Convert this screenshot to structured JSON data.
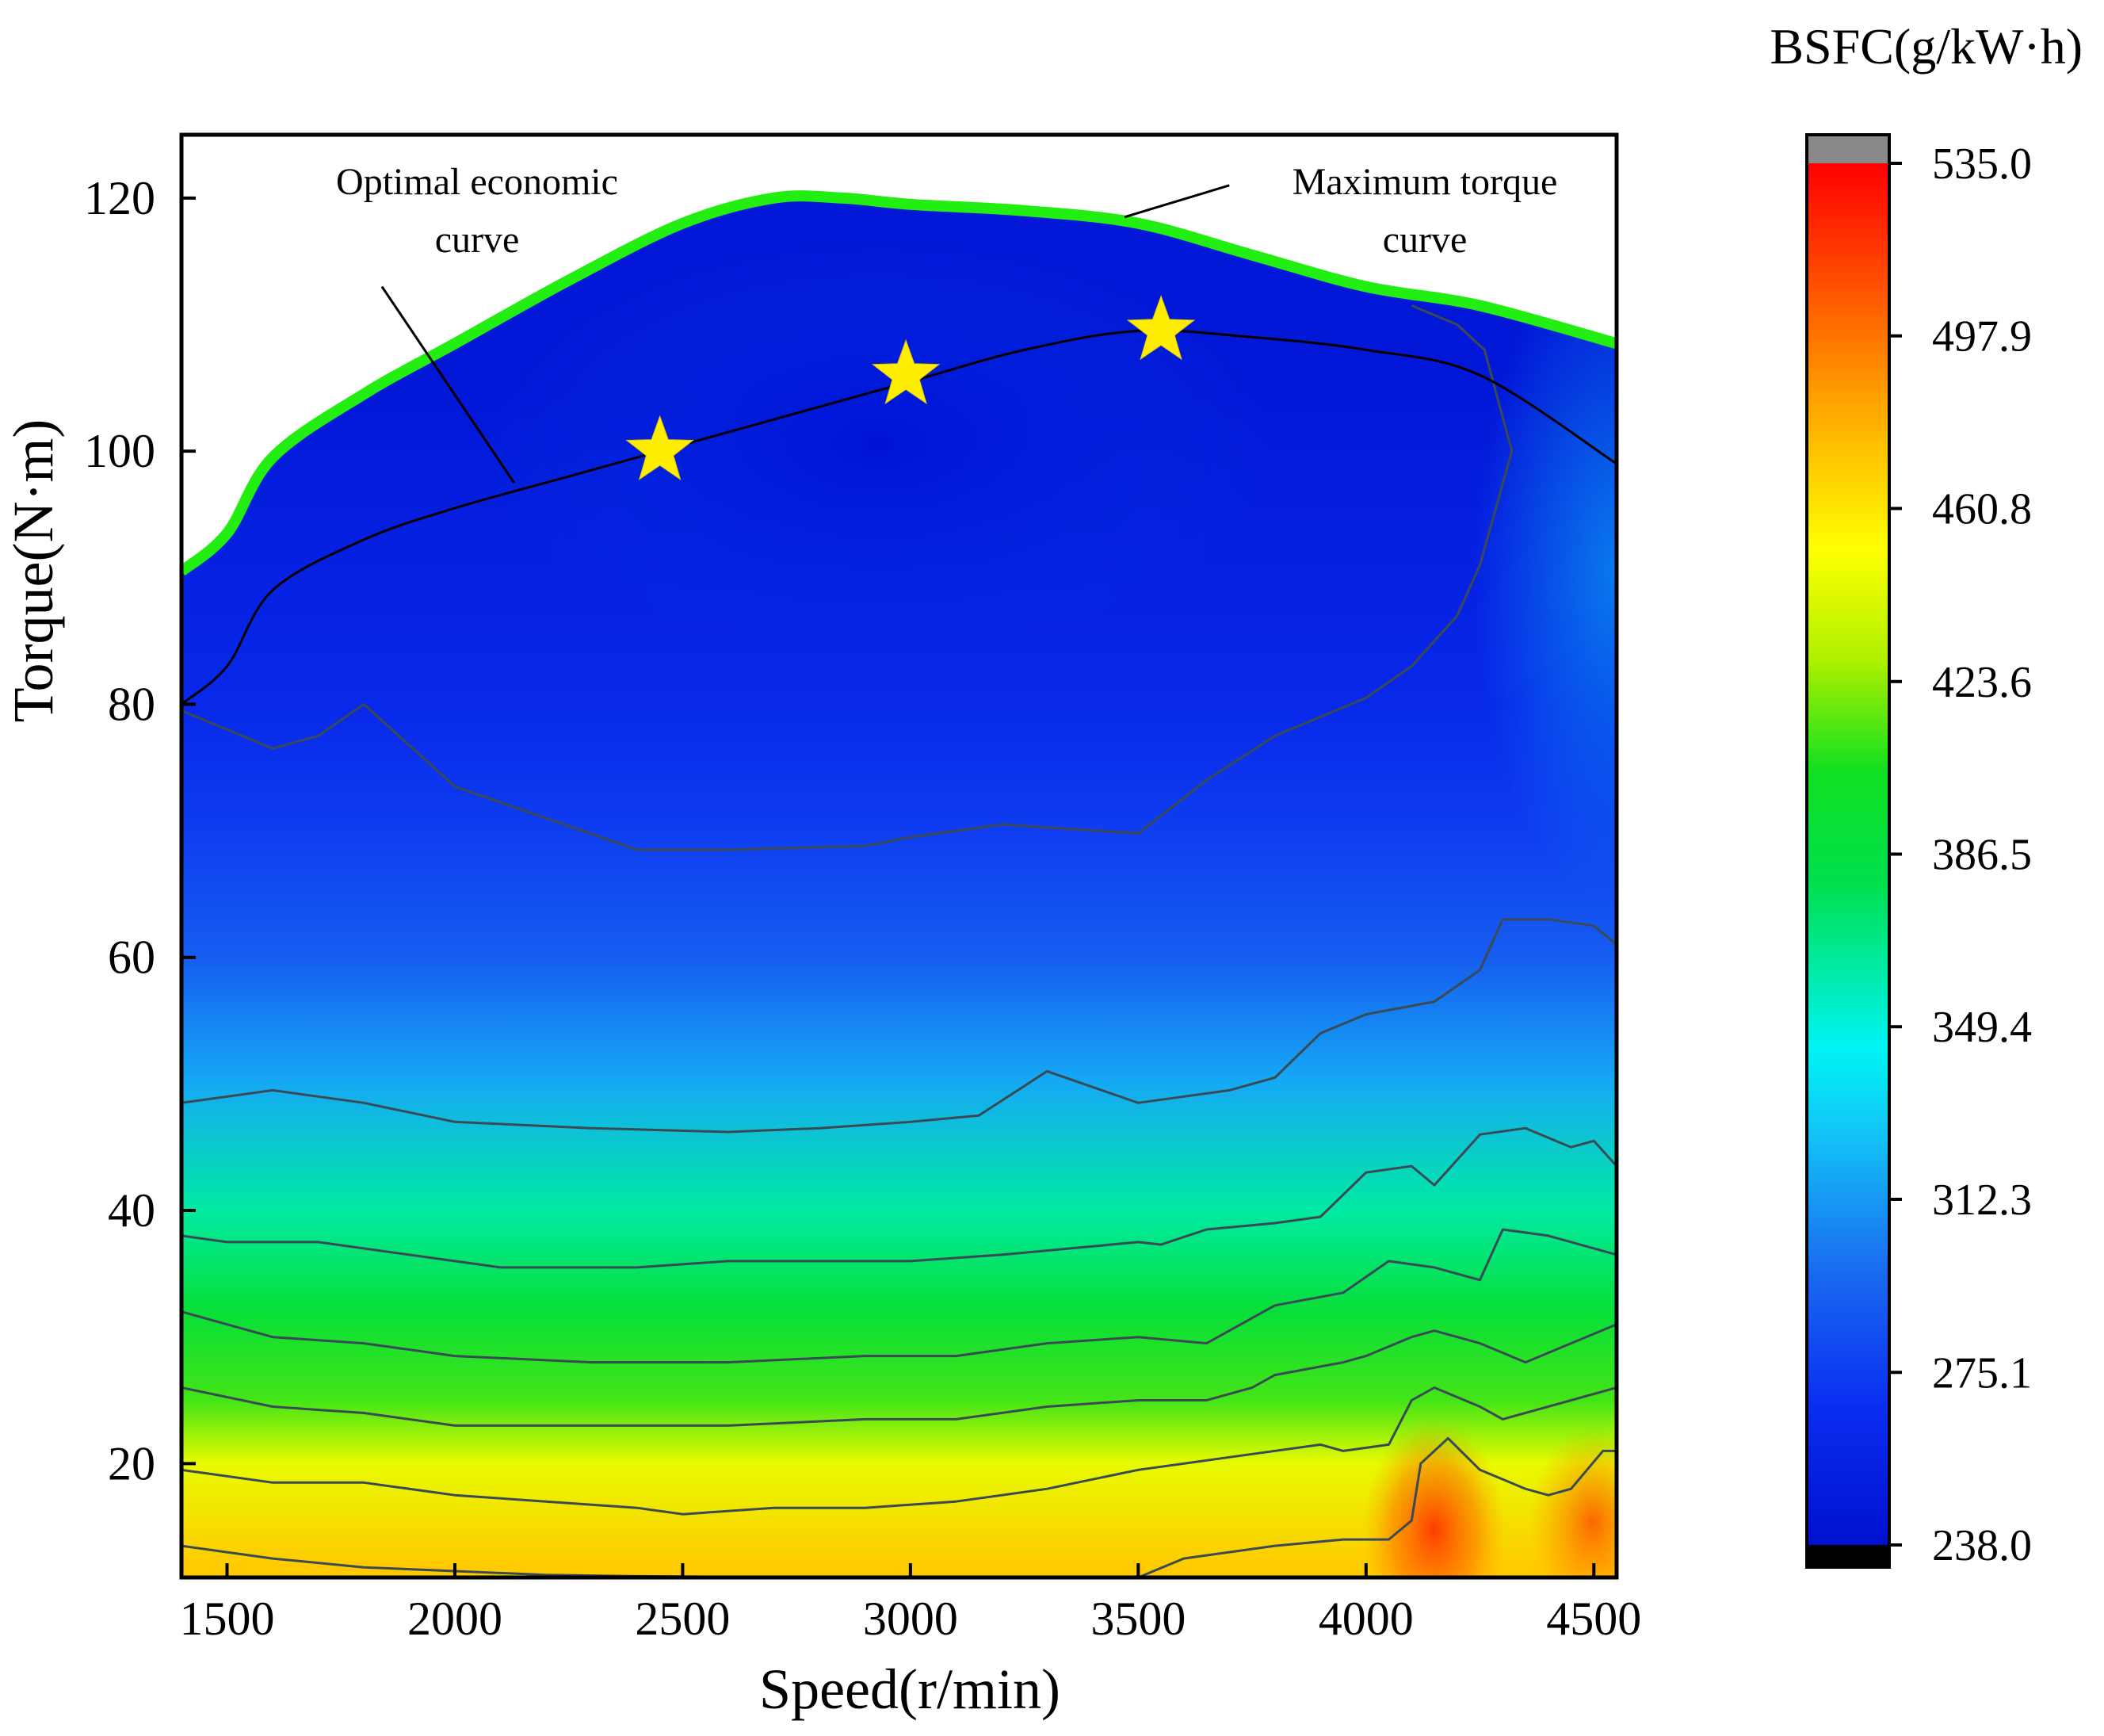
{
  "chart_data": {
    "type": "contour",
    "title": "",
    "xlabel": "Speed(r/min)",
    "ylabel": "Torque(N·m)",
    "xlim": [
      1400,
      4550
    ],
    "ylim": [
      11,
      125
    ],
    "xticks": [
      1500,
      2000,
      2500,
      3000,
      3500,
      4000,
      4500
    ],
    "yticks": [
      20,
      40,
      60,
      80,
      100,
      120
    ],
    "colorbar": {
      "title": "BSFC(g/kW·h)",
      "range": [
        238.0,
        535.0
      ],
      "ticks": [
        "238.0",
        "275.1",
        "312.3",
        "349.4",
        "386.5",
        "423.6",
        "460.8",
        "497.9",
        "535.0"
      ],
      "under_color": "#000000",
      "over_color": "#888888"
    },
    "bsfc_bands_by_torque": [
      {
        "torque": 12,
        "bsfc": 470
      },
      {
        "torque": 20,
        "bsfc": 445
      },
      {
        "torque": 25,
        "bsfc": 412
      },
      {
        "torque": 32,
        "bsfc": 392
      },
      {
        "torque": 40,
        "bsfc": 362
      },
      {
        "torque": 50,
        "bsfc": 318
      },
      {
        "torque": 60,
        "bsfc": 290
      },
      {
        "torque": 70,
        "bsfc": 275
      },
      {
        "torque": 80,
        "bsfc": 262
      },
      {
        "torque": 95,
        "bsfc": 252
      },
      {
        "torque": 105,
        "bsfc": 245
      }
    ],
    "series": [
      {
        "name": "Maximum torque curve",
        "color": "#22ee11",
        "x": [
          1400,
          1500,
          1600,
          1800,
          2000,
          2250,
          2500,
          2700,
          2850,
          3000,
          3250,
          3500,
          3750,
          4000,
          4250,
          4550
        ],
        "y": [
          90.5,
          93.5,
          99.5,
          104.5,
          108.5,
          113.5,
          118.0,
          120.0,
          120.0,
          119.5,
          119.0,
          118.0,
          115.5,
          113.0,
          111.5,
          108.5
        ]
      },
      {
        "name": "Optimal economic curve",
        "color": "#000000",
        "x": [
          1400,
          1500,
          1600,
          1800,
          2000,
          2250,
          2450,
          2750,
          3000,
          3250,
          3500,
          3750,
          4000,
          4250,
          4550
        ],
        "y": [
          80.0,
          83.0,
          89.0,
          93.0,
          95.5,
          98.0,
          100.0,
          103.0,
          105.5,
          108.0,
          109.5,
          109.0,
          108.0,
          106.0,
          99.0
        ]
      }
    ],
    "optimal_points": [
      {
        "x": 2450,
        "y": 100
      },
      {
        "x": 2990,
        "y": 106
      },
      {
        "x": 3550,
        "y": 109.5
      }
    ],
    "contour_lines": [
      {
        "x": [
          1400,
          1600,
          1700,
          1800,
          2000,
          2200,
          2400,
          2600,
          2900,
          3000,
          3200,
          3500,
          3650,
          3800,
          4000,
          4100,
          4200,
          4250,
          4320,
          4260,
          4200,
          4100
        ],
        "y": [
          79.5,
          76.5,
          77.5,
          80,
          73.5,
          71,
          68.5,
          68.5,
          68.8,
          69.5,
          70.5,
          69.8,
          74,
          77.5,
          80.5,
          83,
          87,
          91,
          100,
          108,
          110,
          111.5
        ]
      },
      {
        "x": [
          1400,
          1600,
          1800,
          2000,
          2300,
          2600,
          2800,
          3000,
          3150,
          3300,
          3500,
          3700,
          3800,
          3900,
          4000,
          4150,
          4250,
          4300,
          4400,
          4500,
          4550
        ],
        "y": [
          48.5,
          49.5,
          48.5,
          47,
          46.5,
          46.2,
          46.5,
          47,
          47.5,
          51,
          48.5,
          49.5,
          50.5,
          54,
          55.5,
          56.5,
          59,
          63,
          63,
          62.5,
          61
        ]
      },
      {
        "x": [
          1400,
          1500,
          1700,
          1900,
          2100,
          2400,
          2600,
          3000,
          3200,
          3500,
          3550,
          3650,
          3800,
          3900,
          4000,
          4100,
          4150,
          4250,
          4350,
          4450,
          4500,
          4550
        ],
        "y": [
          38,
          37.5,
          37.5,
          36.5,
          35.5,
          35.5,
          36,
          36,
          36.5,
          37.5,
          37.3,
          38.5,
          39,
          39.5,
          43,
          43.5,
          42,
          46,
          46.5,
          45,
          45.5,
          43.5
        ]
      },
      {
        "x": [
          1400,
          1600,
          1800,
          2000,
          2300,
          2600,
          2900,
          3100,
          3300,
          3500,
          3650,
          3750,
          3800,
          3950,
          4050,
          4150,
          4250,
          4300,
          4400,
          4550
        ],
        "y": [
          32,
          30,
          29.5,
          28.5,
          28,
          28,
          28.5,
          28.5,
          29.5,
          30,
          29.5,
          31.5,
          32.5,
          33.5,
          36,
          35.5,
          34.5,
          38.5,
          38,
          36.5
        ]
      },
      {
        "x": [
          1400,
          1600,
          1800,
          2000,
          2300,
          2600,
          2900,
          3100,
          3300,
          3500,
          3650,
          3750,
          3800,
          3950,
          4000,
          4100,
          4150,
          4250,
          4350,
          4550
        ],
        "y": [
          26,
          24.5,
          24,
          23,
          23,
          23,
          23.5,
          23.5,
          24.5,
          25,
          25,
          26,
          27,
          28,
          28.5,
          30,
          30.5,
          29.5,
          28,
          31
        ]
      },
      {
        "x": [
          1400,
          1600,
          1800,
          2000,
          2200,
          2400,
          2500,
          2700,
          2900,
          3100,
          3300,
          3500,
          3700,
          3900,
          3950,
          4050,
          4100,
          4150,
          4250,
          4300,
          4450,
          4550
        ],
        "y": [
          19.5,
          18.5,
          18.5,
          17.5,
          17,
          16.5,
          16,
          16.5,
          16.5,
          17,
          18,
          19.5,
          20.5,
          21.5,
          21,
          21.5,
          25,
          26,
          24.5,
          23.5,
          25,
          26
        ]
      },
      {
        "x": [
          1400,
          1600,
          1800,
          2000,
          2200,
          2400,
          2600,
          2800
        ],
        "y": [
          13.5,
          12.5,
          11.8,
          11.5,
          11.2,
          11.1,
          11.05,
          11.0
        ]
      },
      {
        "x": [
          3500,
          3600,
          3800,
          3950,
          4050,
          4100,
          4120,
          4180,
          4250,
          4350,
          4400,
          4450,
          4520,
          4550
        ],
        "y": [
          11,
          12.5,
          13.5,
          14,
          14,
          15.5,
          20,
          22,
          19.5,
          18,
          17.5,
          18,
          21,
          21
        ]
      }
    ],
    "annotations": [
      {
        "text_lines": [
          "Optimal economic",
          "curve"
        ],
        "line_from": {
          "x": 1840,
          "y": 113
        },
        "line_to": {
          "x": 2130,
          "y": 97.5
        }
      },
      {
        "text_lines": [
          "Maximum torque",
          "curve"
        ],
        "line_from": {
          "x": 3700,
          "y": 121
        },
        "line_to": {
          "x": 3470,
          "y": 118.5
        }
      }
    ]
  }
}
